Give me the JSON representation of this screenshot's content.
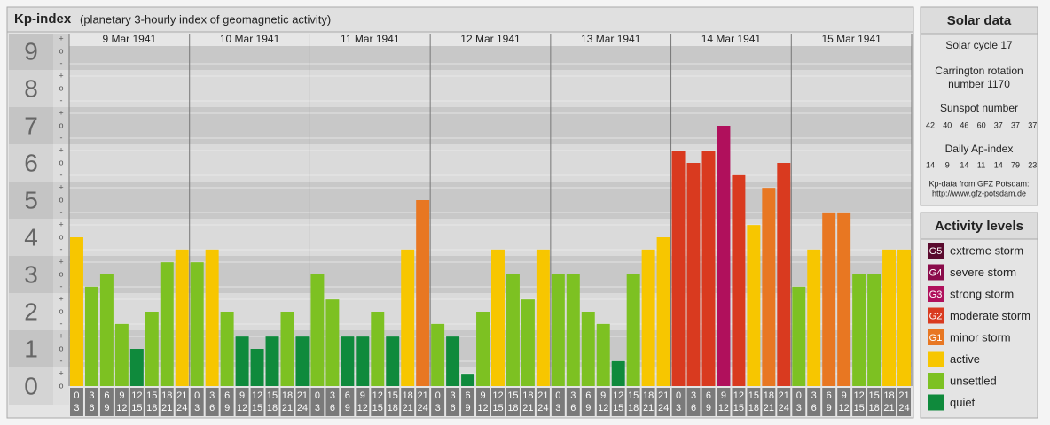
{
  "chart_data": {
    "type": "bar",
    "title": "Kp-index",
    "subtitle": "(planetary 3-hourly index of geomagnetic activity)",
    "ylim": [
      0,
      9.5
    ],
    "yticks": [
      0,
      1,
      2,
      3,
      4,
      5,
      6,
      7,
      8,
      9
    ],
    "kp_suffixes": [
      "o",
      "+",
      "-"
    ],
    "hour_bins": [
      [
        "0",
        "3"
      ],
      [
        "3",
        "6"
      ],
      [
        "6",
        "9"
      ],
      [
        "9",
        "12"
      ],
      [
        "12",
        "15"
      ],
      [
        "15",
        "18"
      ],
      [
        "18",
        "21"
      ],
      [
        "21",
        "24"
      ]
    ],
    "days": [
      {
        "date": "9 Mar 1941",
        "values": [
          4,
          2.67,
          3,
          1.67,
          1,
          2,
          3.33,
          3.67
        ],
        "colors": [
          "#f7c600",
          "#7dc122",
          "#7dc122",
          "#7dc122",
          "#0f8a3c",
          "#7dc122",
          "#7dc122",
          "#f7c600"
        ]
      },
      {
        "date": "10 Mar 1941",
        "values": [
          3.33,
          3.67,
          2,
          1.33,
          1,
          1.33,
          2,
          1.33
        ],
        "colors": [
          "#7dc122",
          "#f7c600",
          "#7dc122",
          "#0f8a3c",
          "#0f8a3c",
          "#0f8a3c",
          "#7dc122",
          "#0f8a3c"
        ]
      },
      {
        "date": "11 Mar 1941",
        "values": [
          3,
          2.33,
          1.33,
          1.33,
          2,
          1.33,
          3.67,
          5
        ],
        "colors": [
          "#7dc122",
          "#7dc122",
          "#0f8a3c",
          "#0f8a3c",
          "#7dc122",
          "#0f8a3c",
          "#f7c600",
          "#e87722"
        ]
      },
      {
        "date": "12 Mar 1941",
        "values": [
          1.67,
          1.33,
          0.33,
          2,
          3.67,
          3,
          2.33,
          3.67
        ],
        "colors": [
          "#7dc122",
          "#0f8a3c",
          "#0f8a3c",
          "#7dc122",
          "#f7c600",
          "#7dc122",
          "#7dc122",
          "#f7c600"
        ]
      },
      {
        "date": "13 Mar 1941",
        "values": [
          3,
          3,
          2,
          1.67,
          0.67,
          3,
          3.67,
          4
        ],
        "colors": [
          "#7dc122",
          "#7dc122",
          "#7dc122",
          "#7dc122",
          "#0f8a3c",
          "#7dc122",
          "#f7c600",
          "#f7c600"
        ]
      },
      {
        "date": "14 Mar 1941",
        "values": [
          6.33,
          6,
          6.33,
          7,
          5.67,
          4.33,
          5.33,
          6
        ],
        "colors": [
          "#d93a1f",
          "#d93a1f",
          "#d93a1f",
          "#b0105c",
          "#d93a1f",
          "#f7c600",
          "#e87722",
          "#d93a1f"
        ]
      },
      {
        "date": "15 Mar 1941",
        "values": [
          2.67,
          3.67,
          4.67,
          4.67,
          3,
          3,
          3.67,
          3.67
        ],
        "colors": [
          "#7dc122",
          "#f7c600",
          "#e87722",
          "#e87722",
          "#7dc122",
          "#7dc122",
          "#f7c600",
          "#f7c600"
        ]
      }
    ]
  },
  "solar_data": {
    "title": "Solar data",
    "cycle": "Solar cycle 17",
    "carrington": [
      "Carrington rotation",
      "number 1170"
    ],
    "sunspot_title": "Sunspot number",
    "sunspot": [
      42,
      40,
      46,
      60,
      37,
      37,
      37
    ],
    "ap_title": "Daily Ap-index",
    "ap": [
      14,
      9,
      14,
      11,
      14,
      79,
      23
    ],
    "source": "Kp-data from GFZ Potsdam:",
    "url": "http://www.gfz-potsdam.de"
  },
  "activity_levels": {
    "title": "Activity levels",
    "levels": [
      {
        "code": "G5",
        "name": "extreme storm",
        "color": "#5a0a2e"
      },
      {
        "code": "G4",
        "name": "severe storm",
        "color": "#8a0b4a"
      },
      {
        "code": "G3",
        "name": "strong storm",
        "color": "#b0105c"
      },
      {
        "code": "G2",
        "name": "moderate storm",
        "color": "#d93a1f"
      },
      {
        "code": "G1",
        "name": "minor storm",
        "color": "#e87722"
      },
      {
        "name": "active",
        "color": "#f7c600"
      },
      {
        "name": "unsettled",
        "color": "#7dc122"
      },
      {
        "name": "quiet",
        "color": "#0f8a3c"
      }
    ]
  }
}
